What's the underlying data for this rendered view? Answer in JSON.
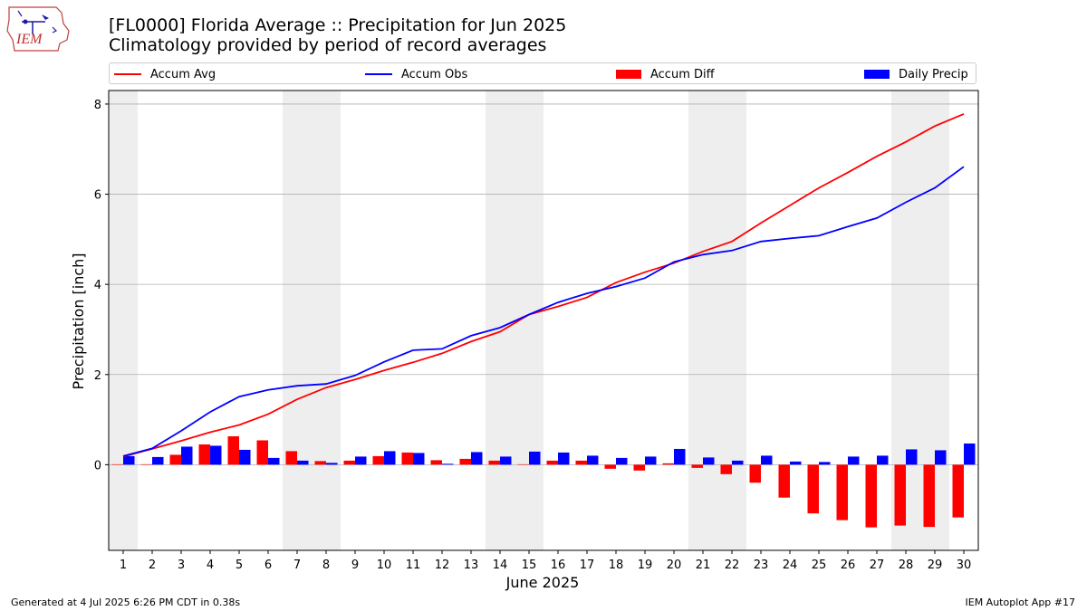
{
  "logo": {
    "text": "IEM"
  },
  "header": {
    "title": "[FL0000] Florida Average :: Precipitation for Jun 2025",
    "subtitle": "Climatology provided by period of record averages"
  },
  "footer": {
    "left": "Generated at 4 Jul 2025 6:26 PM CDT in 0.38s",
    "right": "IEM Autoplot App #17"
  },
  "chart_data": {
    "type": "bar",
    "xlabel": "June 2025",
    "ylabel": "Precipitation [inch]",
    "x": [
      1,
      2,
      3,
      4,
      5,
      6,
      7,
      8,
      9,
      10,
      11,
      12,
      13,
      14,
      15,
      16,
      17,
      18,
      19,
      20,
      21,
      22,
      23,
      24,
      25,
      26,
      27,
      28,
      29,
      30
    ],
    "xlim": [
      0.5,
      30.5
    ],
    "ylim": [
      -1.9,
      8.3
    ],
    "yticks": [
      0,
      2,
      4,
      6,
      8
    ],
    "grid": "horizontal",
    "legend_position": "top",
    "weekend_shading": [
      [
        0.5,
        1.5
      ],
      [
        6.5,
        8.5
      ],
      [
        13.5,
        15.5
      ],
      [
        20.5,
        22.5
      ],
      [
        27.5,
        29.5
      ]
    ],
    "colors": {
      "avg": "#ff0000",
      "obs": "#0000ff",
      "diff": "#ff0000",
      "daily": "#0000ff",
      "shade": "#eeeeee",
      "grid": "#b0b0b0"
    },
    "series": [
      {
        "name": "Accum Avg",
        "kind": "line",
        "values": [
          0.18,
          0.35,
          0.53,
          0.72,
          0.88,
          1.12,
          1.45,
          1.71,
          1.89,
          2.09,
          2.27,
          2.47,
          2.73,
          2.95,
          3.33,
          3.51,
          3.71,
          4.04,
          4.27,
          4.47,
          4.73,
          4.95,
          5.36,
          5.75,
          6.14,
          6.48,
          6.84,
          7.16,
          7.51,
          7.78
        ]
      },
      {
        "name": "Accum Obs",
        "kind": "line",
        "values": [
          0.19,
          0.36,
          0.75,
          1.17,
          1.51,
          1.66,
          1.75,
          1.79,
          1.98,
          2.28,
          2.54,
          2.57,
          2.86,
          3.04,
          3.33,
          3.6,
          3.8,
          3.95,
          4.14,
          4.5,
          4.66,
          4.75,
          4.95,
          5.02,
          5.08,
          5.28,
          5.47,
          5.82,
          6.14,
          6.61
        ]
      },
      {
        "name": "Accum Diff",
        "kind": "bar",
        "values": [
          0.01,
          0.01,
          0.22,
          0.45,
          0.63,
          0.54,
          0.3,
          0.08,
          0.09,
          0.19,
          0.27,
          0.1,
          0.13,
          0.09,
          0.01,
          0.09,
          0.09,
          -0.09,
          -0.13,
          0.03,
          -0.07,
          -0.21,
          -0.4,
          -0.73,
          -1.08,
          -1.23,
          -1.39,
          -1.35,
          -1.38,
          -1.17
        ]
      },
      {
        "name": "Daily Precip",
        "kind": "bar",
        "values": [
          0.19,
          0.17,
          0.4,
          0.42,
          0.33,
          0.15,
          0.09,
          0.04,
          0.18,
          0.3,
          0.26,
          0.02,
          0.28,
          0.18,
          0.29,
          0.27,
          0.2,
          0.15,
          0.18,
          0.35,
          0.16,
          0.09,
          0.2,
          0.07,
          0.06,
          0.18,
          0.2,
          0.34,
          0.32,
          0.47
        ]
      }
    ]
  }
}
